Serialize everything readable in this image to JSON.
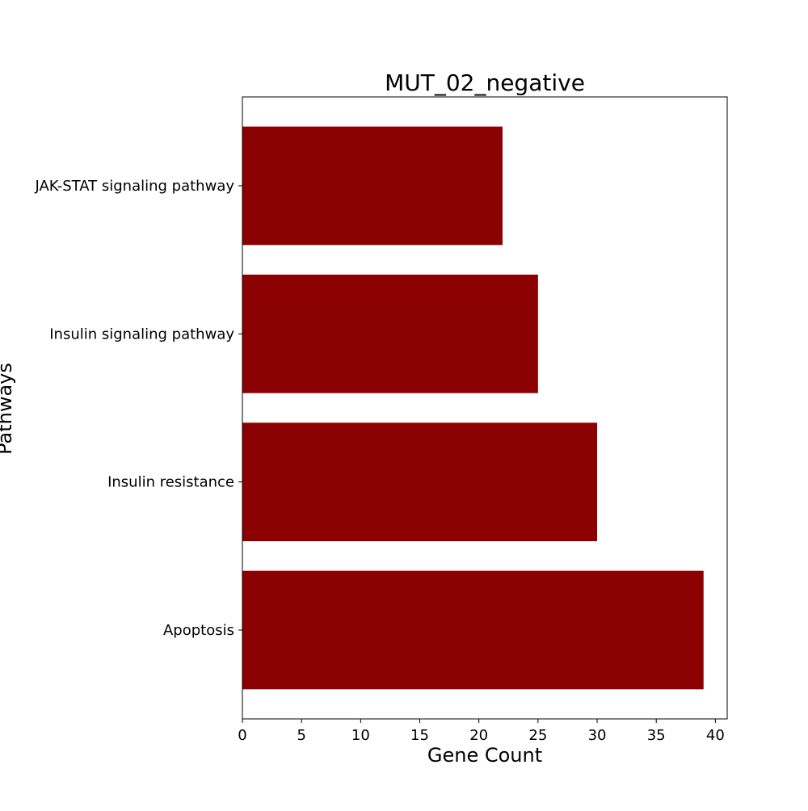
{
  "chart_data": {
    "type": "bar",
    "orientation": "horizontal",
    "title": "MUT_02_negative",
    "xlabel": "Gene Count",
    "ylabel": "Pathways",
    "categories": [
      "Apoptosis",
      "Insulin resistance",
      "Insulin signaling pathway",
      "JAK-STAT signaling pathway"
    ],
    "values": [
      39,
      30,
      25,
      22
    ],
    "xlim": [
      0,
      41
    ],
    "xticks": [
      0,
      5,
      10,
      15,
      20,
      25,
      30,
      35,
      40
    ],
    "grid": false,
    "legend": "none",
    "bar_color": "#8b0000"
  }
}
